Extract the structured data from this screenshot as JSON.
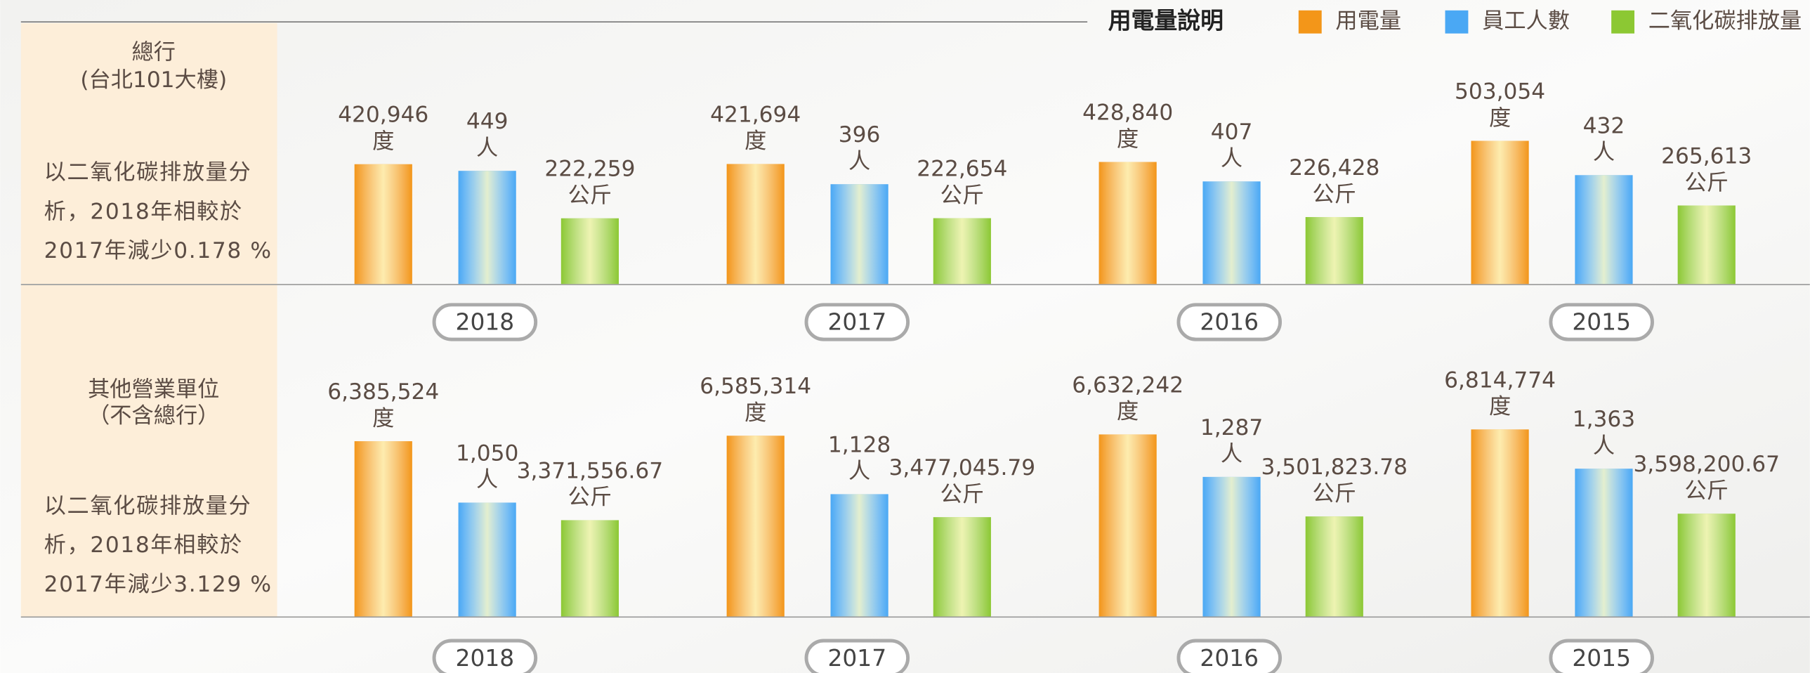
{
  "chart_data": [
    {
      "type": "bar",
      "title": [
        "總行",
        "(台北101大樓)"
      ],
      "note": [
        "以二氧化碳排放量分",
        "析，2018年相較於",
        "2017年減少0.178 %"
      ],
      "legend_title": "用電量說明",
      "categories": [
        "2018",
        "2017",
        "2016",
        "2015"
      ],
      "series": [
        {
          "name": "用電量",
          "color": "#f39619",
          "unit": "度",
          "values": [
            420946,
            421694,
            428840,
            503054
          ],
          "value_labels": [
            "420,946",
            "421,694",
            "428,840",
            "503,054"
          ]
        },
        {
          "name": "員工人數",
          "color": "#4aa8f4",
          "unit": "人",
          "values": [
            449,
            396,
            407,
            432
          ],
          "value_labels": [
            "449",
            "396",
            "407",
            "432"
          ]
        },
        {
          "name": "二氧化碳排放量",
          "color": "#8cc833",
          "unit": "公斤",
          "values": [
            222259,
            222654,
            226428,
            265613
          ],
          "value_labels": [
            "222,259",
            "222,654",
            "226,428",
            "265,613"
          ]
        }
      ]
    },
    {
      "type": "bar",
      "title": [
        "其他營業單位",
        "（不含總行）"
      ],
      "note": [
        "以二氧化碳排放量分",
        "析，2018年相較於",
        "2017年減少3.129 %"
      ],
      "categories": [
        "2018",
        "2017",
        "2016",
        "2015"
      ],
      "series": [
        {
          "color": "#f39619",
          "unit": "度",
          "values": [
            6385524,
            6585314,
            6632242,
            6814774
          ],
          "value_labels": [
            "6,385,524",
            "6,585,314",
            "6,632,242",
            "6,814,774"
          ]
        },
        {
          "color": "#4aa8f4",
          "unit": "人",
          "values": [
            1050,
            1128,
            1287,
            1363
          ],
          "value_labels": [
            "1,050",
            "1,128",
            "1,287",
            "1,363"
          ]
        },
        {
          "color": "#8cc833",
          "unit": "公斤",
          "values": [
            3371556.67,
            3477045.79,
            3501823.78,
            3598200.67
          ],
          "value_labels": [
            "3,371,556.67",
            "3,477,045.79",
            "3,501,823.78",
            "3,598,200.67"
          ]
        }
      ]
    }
  ]
}
